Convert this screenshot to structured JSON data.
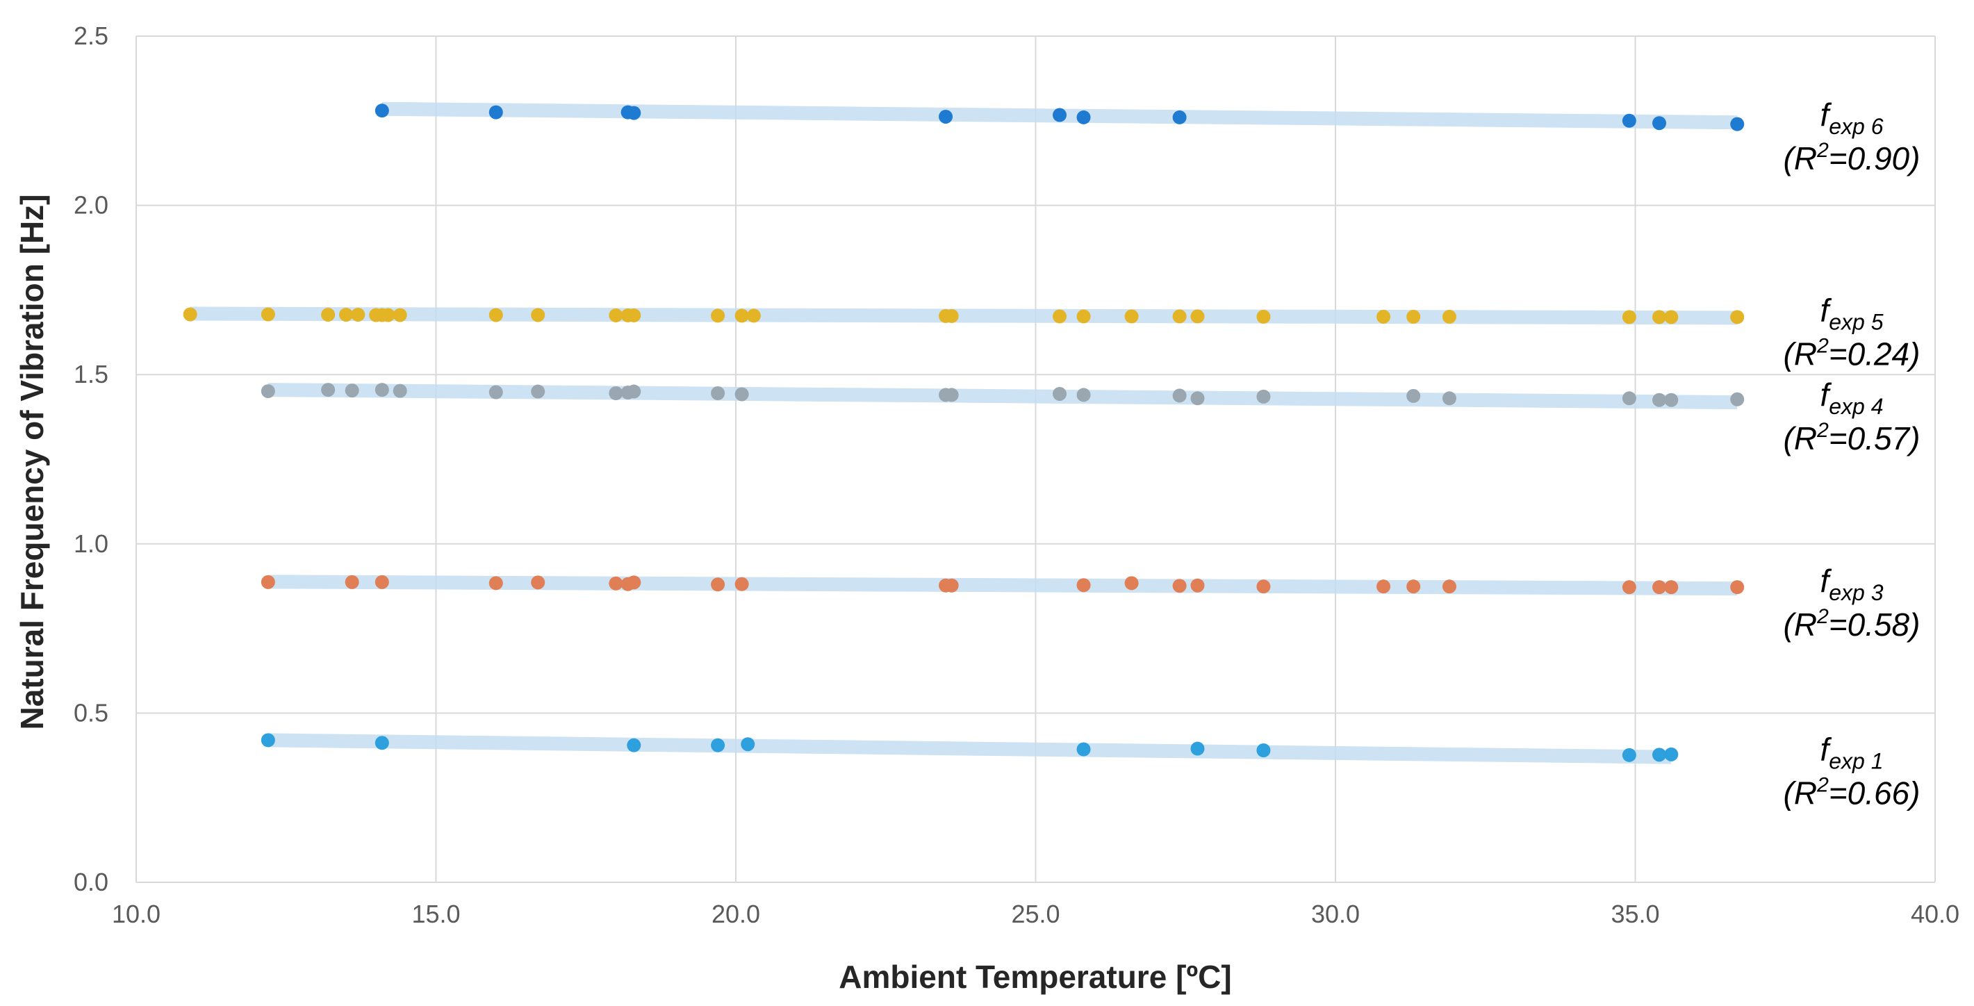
{
  "chart_data": {
    "type": "scatter",
    "title": "",
    "xlabel": "Ambient Temperature [ºC]",
    "ylabel": "Natural Frequency of Vibration [Hz]",
    "xlim": [
      10.0,
      40.0
    ],
    "ylim": [
      0.0,
      2.5
    ],
    "x_ticks": [
      "10.0",
      "15.0",
      "20.0",
      "25.0",
      "30.0",
      "35.0",
      "40.0"
    ],
    "y_ticks": [
      "0.0",
      "0.5",
      "1.0",
      "1.5",
      "2.0",
      "2.5"
    ],
    "grid": true,
    "trend_color": "#c5ddf2",
    "series": [
      {
        "name": "fexp 6",
        "label_base": "f",
        "label_sub": "exp 6",
        "r2_open": "(R",
        "r2_sup": "2",
        "r2_value": "=0.90)",
        "color": "#1f7ad1",
        "trend": [
          [
            14.1,
            2.285
          ],
          [
            36.7,
            2.245
          ]
        ],
        "points": [
          [
            14.1,
            2.28
          ],
          [
            16.0,
            2.275
          ],
          [
            18.2,
            2.275
          ],
          [
            18.3,
            2.273
          ],
          [
            23.5,
            2.262
          ],
          [
            25.4,
            2.267
          ],
          [
            25.8,
            2.26
          ],
          [
            27.4,
            2.26
          ],
          [
            34.9,
            2.25
          ],
          [
            35.4,
            2.243
          ],
          [
            36.7,
            2.24
          ]
        ]
      },
      {
        "name": "fexp 5",
        "label_base": "f",
        "label_sub": "exp 5",
        "r2_open": "(R",
        "r2_sup": "2",
        "r2_value": "=0.24)",
        "color": "#e3b425",
        "trend": [
          [
            10.9,
            1.68
          ],
          [
            36.7,
            1.668
          ]
        ],
        "points": [
          [
            10.9,
            1.678
          ],
          [
            12.2,
            1.678
          ],
          [
            13.2,
            1.677
          ],
          [
            13.5,
            1.677
          ],
          [
            13.7,
            1.677
          ],
          [
            14.0,
            1.676
          ],
          [
            14.1,
            1.676
          ],
          [
            14.2,
            1.676
          ],
          [
            14.4,
            1.676
          ],
          [
            16.0,
            1.676
          ],
          [
            16.7,
            1.676
          ],
          [
            18.0,
            1.675
          ],
          [
            18.2,
            1.675
          ],
          [
            18.3,
            1.675
          ],
          [
            19.7,
            1.674
          ],
          [
            20.1,
            1.674
          ],
          [
            20.3,
            1.674
          ],
          [
            23.5,
            1.673
          ],
          [
            23.6,
            1.673
          ],
          [
            25.4,
            1.672
          ],
          [
            25.8,
            1.672
          ],
          [
            26.6,
            1.672
          ],
          [
            27.4,
            1.672
          ],
          [
            27.7,
            1.672
          ],
          [
            28.8,
            1.671
          ],
          [
            30.8,
            1.671
          ],
          [
            31.3,
            1.671
          ],
          [
            31.9,
            1.671
          ],
          [
            34.9,
            1.67
          ],
          [
            35.4,
            1.67
          ],
          [
            35.6,
            1.67
          ],
          [
            36.7,
            1.67
          ]
        ]
      },
      {
        "name": "fexp 4",
        "label_base": "f",
        "label_sub": "exp 4",
        "r2_open": "(R",
        "r2_sup": "2",
        "r2_value": "=0.57)",
        "color": "#9aa7b1",
        "trend": [
          [
            12.2,
            1.455
          ],
          [
            36.7,
            1.418
          ]
        ],
        "points": [
          [
            12.2,
            1.451
          ],
          [
            13.2,
            1.455
          ],
          [
            13.6,
            1.453
          ],
          [
            14.1,
            1.455
          ],
          [
            14.4,
            1.452
          ],
          [
            16.0,
            1.448
          ],
          [
            16.7,
            1.45
          ],
          [
            18.0,
            1.445
          ],
          [
            18.2,
            1.447
          ],
          [
            18.3,
            1.45
          ],
          [
            19.7,
            1.445
          ],
          [
            20.1,
            1.442
          ],
          [
            23.5,
            1.44
          ],
          [
            23.6,
            1.44
          ],
          [
            25.4,
            1.443
          ],
          [
            25.8,
            1.44
          ],
          [
            27.4,
            1.438
          ],
          [
            27.7,
            1.43
          ],
          [
            28.8,
            1.435
          ],
          [
            31.3,
            1.437
          ],
          [
            31.9,
            1.43
          ],
          [
            34.9,
            1.43
          ],
          [
            35.4,
            1.425
          ],
          [
            35.6,
            1.425
          ],
          [
            36.7,
            1.427
          ]
        ]
      },
      {
        "name": "fexp 3",
        "label_base": "f",
        "label_sub": "exp 3",
        "r2_open": "(R",
        "r2_sup": "2",
        "r2_value": "=0.58)",
        "color": "#e07f55",
        "trend": [
          [
            12.2,
            0.888
          ],
          [
            36.7,
            0.868
          ]
        ],
        "points": [
          [
            12.2,
            0.887
          ],
          [
            13.6,
            0.887
          ],
          [
            14.1,
            0.887
          ],
          [
            16.0,
            0.884
          ],
          [
            16.7,
            0.886
          ],
          [
            18.0,
            0.883
          ],
          [
            18.2,
            0.881
          ],
          [
            18.3,
            0.886
          ],
          [
            19.7,
            0.88
          ],
          [
            20.1,
            0.881
          ],
          [
            23.5,
            0.877
          ],
          [
            23.6,
            0.877
          ],
          [
            25.8,
            0.878
          ],
          [
            26.6,
            0.884
          ],
          [
            27.4,
            0.876
          ],
          [
            27.7,
            0.877
          ],
          [
            28.8,
            0.874
          ],
          [
            30.8,
            0.874
          ],
          [
            31.3,
            0.874
          ],
          [
            31.9,
            0.874
          ],
          [
            34.9,
            0.872
          ],
          [
            35.4,
            0.872
          ],
          [
            35.6,
            0.872
          ],
          [
            36.7,
            0.872
          ]
        ]
      },
      {
        "name": "fexp 1",
        "label_base": "f",
        "label_sub": "exp 1",
        "r2_open": "(R",
        "r2_sup": "2",
        "r2_value": "=0.66)",
        "color": "#2ea0de",
        "trend": [
          [
            12.2,
            0.42
          ],
          [
            35.6,
            0.37
          ]
        ],
        "points": [
          [
            12.2,
            0.42
          ],
          [
            14.1,
            0.412
          ],
          [
            18.3,
            0.405
          ],
          [
            19.7,
            0.405
          ],
          [
            20.2,
            0.408
          ],
          [
            25.8,
            0.393
          ],
          [
            27.7,
            0.395
          ],
          [
            28.8,
            0.39
          ],
          [
            34.9,
            0.376
          ],
          [
            35.4,
            0.377
          ],
          [
            35.6,
            0.378
          ]
        ]
      }
    ]
  }
}
